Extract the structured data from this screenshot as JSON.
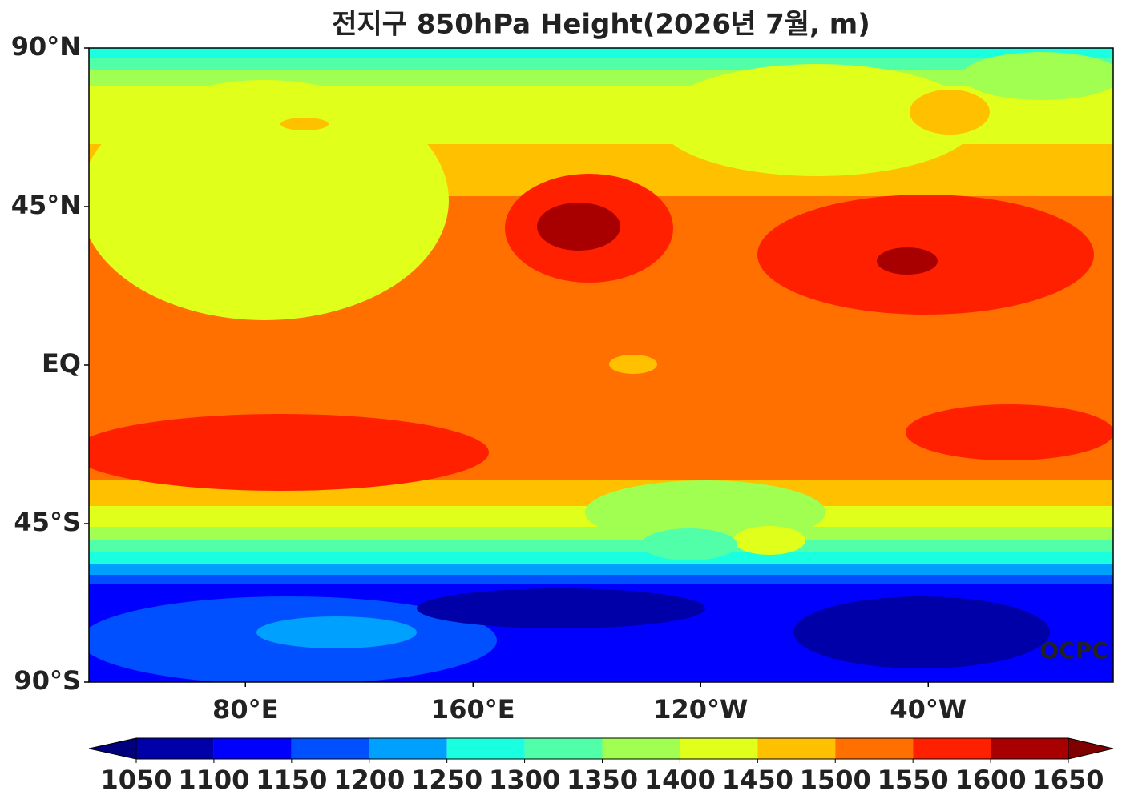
{
  "title": "전지구 850hPa Height(2026년 7월, m)",
  "map": {
    "lonlim": [
      25,
      385
    ],
    "latlim": [
      -90,
      90
    ],
    "lat_ticks": [
      {
        "value": 90,
        "label": "90°N"
      },
      {
        "value": 45,
        "label": "45°N"
      },
      {
        "value": 0,
        "label": "EQ"
      },
      {
        "value": -45,
        "label": "45°S"
      },
      {
        "value": -90,
        "label": "90°S"
      }
    ],
    "lon_ticks": [
      {
        "value": 80,
        "label": "80°E"
      },
      {
        "value": 160,
        "label": "160°E"
      },
      {
        "value": 240,
        "label": "120°W"
      },
      {
        "value": 320,
        "label": "40°W"
      }
    ]
  },
  "colorbar": {
    "levels": [
      1050,
      1100,
      1150,
      1200,
      1250,
      1300,
      1350,
      1400,
      1450,
      1500,
      1550,
      1600,
      1650
    ],
    "colors": [
      "#0000a8",
      "#0000ff",
      "#0050ff",
      "#00a0ff",
      "#19ffe0",
      "#50ffa8",
      "#a0ff50",
      "#e0ff1a",
      "#ffc000",
      "#ff7000",
      "#ff2000",
      "#a80000"
    ],
    "under_color": "#00007f",
    "over_color": "#800000"
  },
  "credit": "OCPC"
}
